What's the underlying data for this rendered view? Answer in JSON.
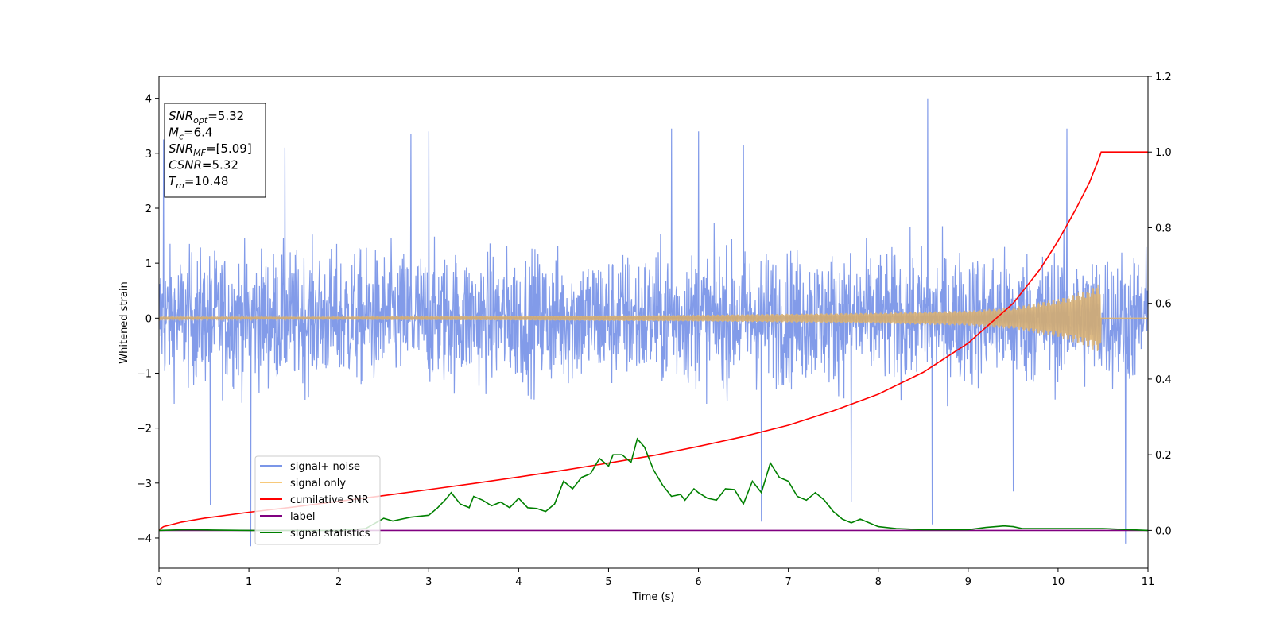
{
  "chart_data": {
    "type": "line",
    "xlabel": "Time (s)",
    "ylabel": "Whitened strain",
    "xlim": [
      0,
      11
    ],
    "ylim_left": [
      -4.55,
      4.4
    ],
    "ylim_right": [
      -0.1,
      1.2
    ],
    "xticks": [
      "0",
      "1",
      "2",
      "3",
      "4",
      "5",
      "6",
      "7",
      "8",
      "9",
      "10",
      "11"
    ],
    "yticks_left": [
      "−4",
      "−3",
      "−2",
      "−1",
      "0",
      "1",
      "2",
      "3",
      "4"
    ],
    "yticks_right": [
      "0.0",
      "0.2",
      "0.4",
      "0.6",
      "0.8",
      "1.0",
      "1.2"
    ],
    "grid": false,
    "legend_position": "lower-left",
    "legend": [
      {
        "label": "signal+ noise",
        "color": "#7b96e8"
      },
      {
        "label": "signal only",
        "color": "#f7c97a"
      },
      {
        "label": "cumilative SNR",
        "color": "#ff0000"
      },
      {
        "label": "label",
        "color": "#800080"
      },
      {
        "label": "signal statistics",
        "color": "#008000"
      }
    ],
    "annotation_box": [
      {
        "base": "SNR",
        "sub": "opt",
        "value": "=5.32"
      },
      {
        "base": "M",
        "sub": "c",
        "value": "=6.4"
      },
      {
        "base": "SNR",
        "sub": "MF",
        "value": "=[5.09]"
      },
      {
        "base": "CSNR",
        "sub": "",
        "value": "=5.32"
      },
      {
        "base": "T",
        "sub": "m",
        "value": "=10.48"
      }
    ],
    "series": [
      {
        "name": "signal+ noise",
        "axis": "left",
        "color": "#7b96e8",
        "x_range": [
          0,
          11
        ],
        "typical_range": [
          -2.0,
          2.0
        ],
        "extremes": [
          {
            "x": 0.05,
            "y": 3.25
          },
          {
            "x": 0.57,
            "y": -3.4
          },
          {
            "x": 1.02,
            "y": -4.15
          },
          {
            "x": 1.4,
            "y": 3.1
          },
          {
            "x": 2.8,
            "y": 3.35
          },
          {
            "x": 3.0,
            "y": 3.4
          },
          {
            "x": 5.7,
            "y": 3.45
          },
          {
            "x": 6.0,
            "y": 3.4
          },
          {
            "x": 6.5,
            "y": 3.15
          },
          {
            "x": 6.7,
            "y": -3.7
          },
          {
            "x": 7.7,
            "y": -3.35
          },
          {
            "x": 8.55,
            "y": 4.0
          },
          {
            "x": 8.6,
            "y": -3.75
          },
          {
            "x": 9.5,
            "y": -3.15
          },
          {
            "x": 10.1,
            "y": 3.45
          },
          {
            "x": 10.75,
            "y": -4.1
          }
        ]
      },
      {
        "name": "signal only",
        "axis": "left",
        "color": "#f7c97a",
        "x_range": [
          0,
          11
        ],
        "merger_time": 10.48,
        "amplitude_points": [
          [
            0,
            0.02
          ],
          [
            2,
            0.03
          ],
          [
            4,
            0.04
          ],
          [
            6,
            0.06
          ],
          [
            8,
            0.1
          ],
          [
            9,
            0.14
          ],
          [
            9.5,
            0.2
          ],
          [
            10,
            0.35
          ],
          [
            10.3,
            0.5
          ],
          [
            10.45,
            0.62
          ],
          [
            10.48,
            0.62
          ]
        ]
      },
      {
        "name": "cumilative SNR",
        "axis": "right",
        "color": "#ff0000",
        "x": [
          0,
          0.05,
          0.25,
          0.5,
          1.0,
          1.5,
          2.0,
          2.5,
          3.0,
          3.5,
          4.0,
          4.5,
          5.0,
          5.5,
          6.0,
          6.5,
          7.0,
          7.5,
          8.0,
          8.5,
          9.0,
          9.5,
          9.8,
          10.0,
          10.2,
          10.35,
          10.45,
          10.48,
          11.0
        ],
        "y": [
          0.002,
          0.01,
          0.022,
          0.032,
          0.048,
          0.062,
          0.077,
          0.092,
          0.108,
          0.124,
          0.141,
          0.159,
          0.178,
          0.198,
          0.222,
          0.248,
          0.278,
          0.316,
          0.36,
          0.418,
          0.495,
          0.6,
          0.69,
          0.765,
          0.85,
          0.92,
          0.98,
          1.0,
          1.0
        ]
      },
      {
        "name": "label",
        "axis": "right",
        "color": "#800080",
        "x": [
          0,
          11
        ],
        "y": [
          0,
          0
        ]
      },
      {
        "name": "signal statistics",
        "axis": "right",
        "color": "#008000",
        "x": [
          0,
          0.3,
          0.6,
          1.0,
          1.5,
          2.0,
          2.3,
          2.5,
          2.6,
          2.8,
          3.0,
          3.1,
          3.2,
          3.25,
          3.35,
          3.45,
          3.5,
          3.6,
          3.7,
          3.8,
          3.9,
          4.0,
          4.1,
          4.2,
          4.3,
          4.4,
          4.5,
          4.6,
          4.7,
          4.8,
          4.9,
          5.0,
          5.05,
          5.15,
          5.25,
          5.32,
          5.4,
          5.5,
          5.6,
          5.7,
          5.8,
          5.85,
          5.95,
          6.0,
          6.1,
          6.2,
          6.3,
          6.4,
          6.5,
          6.6,
          6.7,
          6.8,
          6.9,
          7.0,
          7.1,
          7.2,
          7.3,
          7.4,
          7.5,
          7.6,
          7.7,
          7.8,
          8.0,
          8.2,
          8.5,
          9.0,
          9.2,
          9.4,
          9.5,
          9.6,
          10.0,
          10.5,
          11.0
        ],
        "y": [
          0.0,
          0.002,
          0.001,
          0.0,
          0.0,
          0.0,
          0.005,
          0.032,
          0.025,
          0.035,
          0.04,
          0.06,
          0.085,
          0.1,
          0.07,
          0.06,
          0.09,
          0.08,
          0.065,
          0.075,
          0.06,
          0.085,
          0.06,
          0.058,
          0.05,
          0.07,
          0.13,
          0.11,
          0.14,
          0.15,
          0.19,
          0.17,
          0.2,
          0.2,
          0.18,
          0.242,
          0.22,
          0.16,
          0.12,
          0.09,
          0.095,
          0.08,
          0.11,
          0.1,
          0.085,
          0.08,
          0.11,
          0.108,
          0.07,
          0.13,
          0.1,
          0.178,
          0.14,
          0.13,
          0.09,
          0.08,
          0.1,
          0.08,
          0.05,
          0.03,
          0.02,
          0.03,
          0.01,
          0.005,
          0.002,
          0.002,
          0.008,
          0.012,
          0.01,
          0.005,
          0.005,
          0.005,
          0.0
        ]
      }
    ]
  }
}
